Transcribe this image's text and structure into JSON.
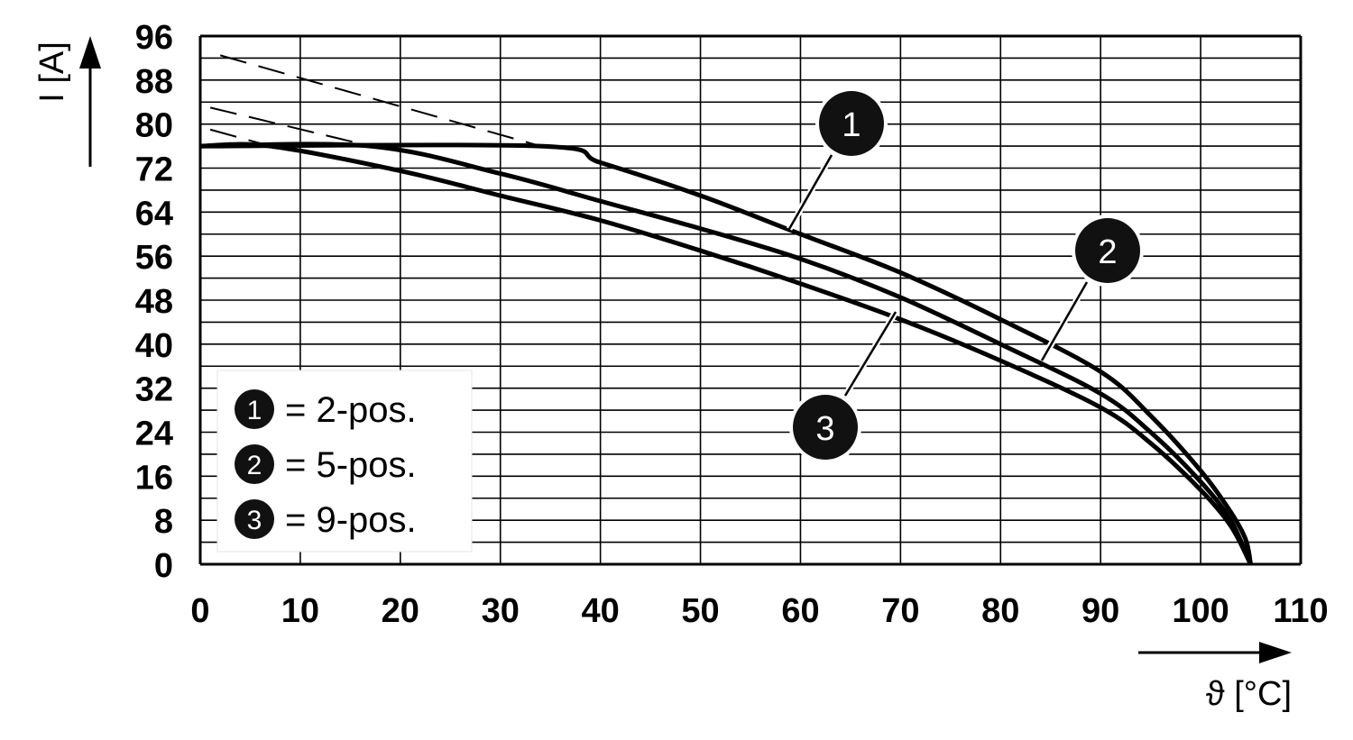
{
  "chart_data": {
    "type": "line",
    "xlabel": "ϑ [°C]",
    "ylabel": "I [A]",
    "xlim": [
      0,
      110
    ],
    "ylim": [
      0,
      96
    ],
    "xticks": [
      "0",
      "10",
      "20",
      "30",
      "40",
      "50",
      "60",
      "70",
      "80",
      "90",
      "100",
      "110"
    ],
    "yticks": [
      "0",
      "8",
      "16",
      "24",
      "32",
      "40",
      "48",
      "56",
      "64",
      "72",
      "80",
      "88",
      "96"
    ],
    "grid": true,
    "legend_position": "bottom-left",
    "series": [
      {
        "name": "2-pos.",
        "marker": "1",
        "points": [
          [
            0,
            76
          ],
          [
            34,
            76
          ],
          [
            40,
            73
          ],
          [
            50,
            67
          ],
          [
            60,
            60
          ],
          [
            70,
            53
          ],
          [
            80,
            44.5
          ],
          [
            90,
            35
          ],
          [
            95,
            27
          ],
          [
            100,
            17
          ],
          [
            103,
            9.5
          ],
          [
            104.5,
            4.5
          ],
          [
            105,
            0
          ]
        ],
        "dashed": [
          [
            2,
            92.5
          ],
          [
            34,
            76
          ]
        ]
      },
      {
        "name": "5-pos.",
        "marker": "2",
        "points": [
          [
            0,
            76
          ],
          [
            17,
            76
          ],
          [
            30,
            71
          ],
          [
            40,
            66
          ],
          [
            50,
            61
          ],
          [
            60,
            55.5
          ],
          [
            70,
            48.5
          ],
          [
            80,
            40
          ],
          [
            90,
            31
          ],
          [
            95,
            24
          ],
          [
            100,
            15
          ],
          [
            103,
            8
          ],
          [
            105,
            0
          ]
        ],
        "dashed": [
          [
            1,
            83
          ],
          [
            17,
            76
          ]
        ]
      },
      {
        "name": "9-pos.",
        "marker": "3",
        "points": [
          [
            0,
            76
          ],
          [
            7,
            76
          ],
          [
            20,
            71.5
          ],
          [
            30,
            67
          ],
          [
            40,
            62.5
          ],
          [
            50,
            57
          ],
          [
            60,
            51
          ],
          [
            70,
            44.5
          ],
          [
            80,
            37
          ],
          [
            90,
            28.5
          ],
          [
            95,
            22
          ],
          [
            100,
            13.5
          ],
          [
            103,
            7
          ],
          [
            105,
            0
          ]
        ],
        "dashed": [
          [
            1,
            79
          ],
          [
            7,
            76
          ]
        ]
      }
    ],
    "legend": [
      {
        "marker": "1",
        "text": "= 2-pos."
      },
      {
        "marker": "2",
        "text": "= 5-pos."
      },
      {
        "marker": "3",
        "text": "= 9-pos."
      }
    ]
  }
}
